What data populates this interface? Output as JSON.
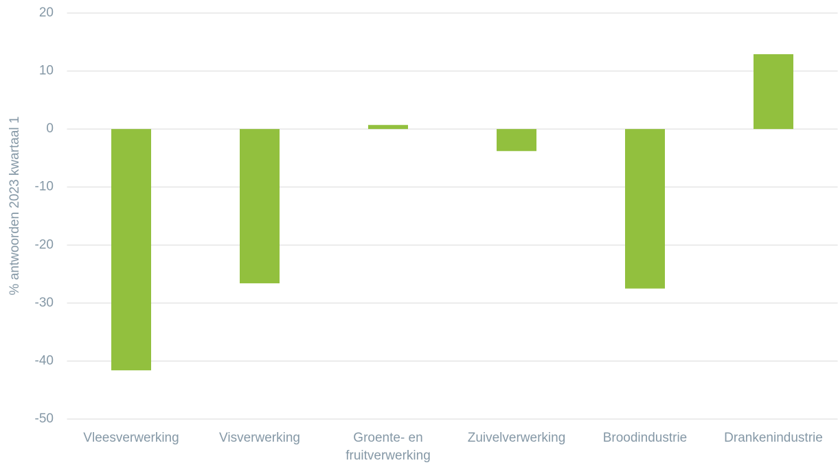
{
  "chart_data": {
    "type": "bar",
    "y_label": "% antwoorden 2023 kwartaal 1",
    "categories": [
      "Vleesverwerking",
      "Visverwerking",
      "Groente- en fruitverwerking",
      "Zuivelverwerking",
      "Broodindustrie",
      "Drankenindustrie"
    ],
    "values": [
      -41.6,
      -26.6,
      0.7,
      -3.8,
      -27.5,
      12.9
    ],
    "color": "#92c03e",
    "ylim": [
      -50,
      20
    ],
    "yticks": [
      -50,
      -40,
      -30,
      -20,
      -10,
      0,
      10,
      20
    ],
    "grid": true
  }
}
